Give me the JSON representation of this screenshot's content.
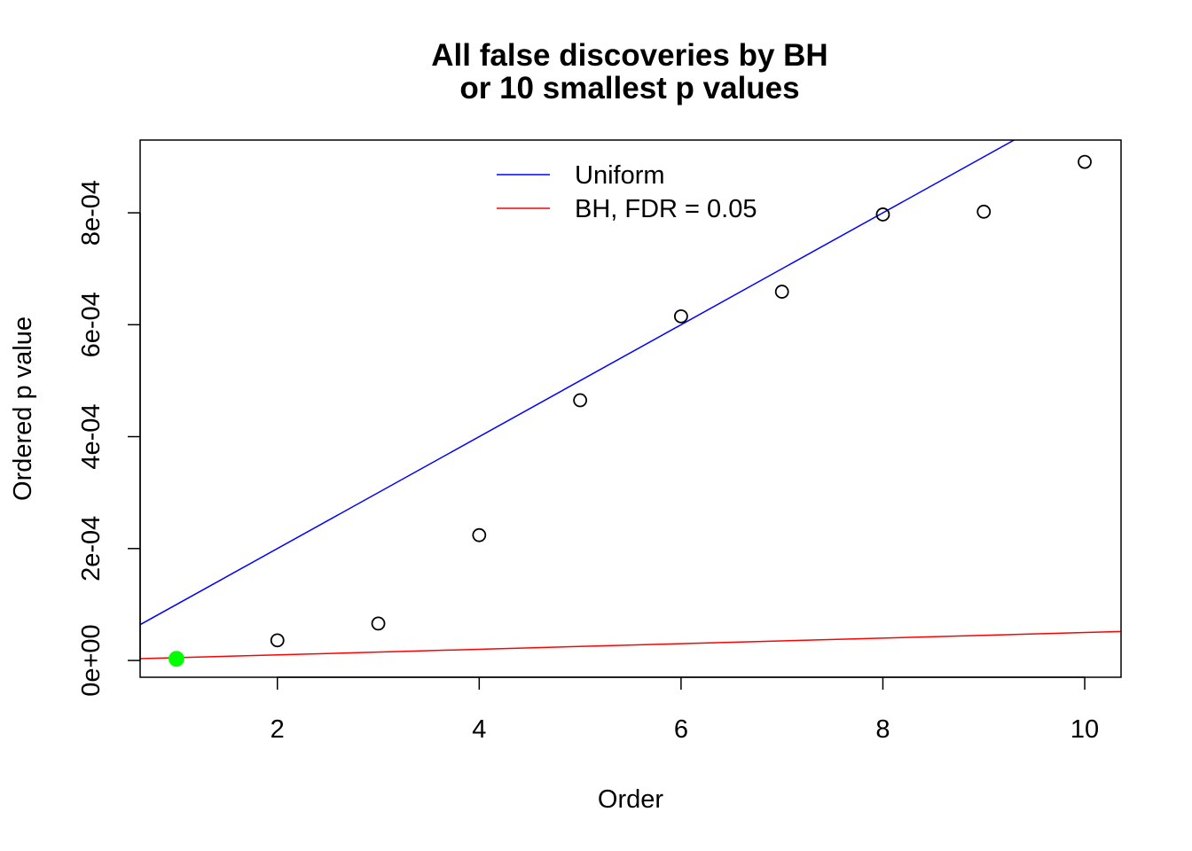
{
  "chart_data": {
    "type": "scatter",
    "title": [
      "All false discoveries by BH",
      "or 10 smallest p values"
    ],
    "xlabel": "Order",
    "ylabel": "Ordered p value",
    "xlim": [
      0.64,
      10.36
    ],
    "ylim": [
      -3e-05,
      0.00093
    ],
    "x_ticks": [
      2,
      4,
      6,
      8,
      10
    ],
    "x_tick_labels": [
      "2",
      "4",
      "6",
      "8",
      "10"
    ],
    "y_ticks": [
      0,
      0.0002,
      0.0004,
      0.0006,
      0.0008
    ],
    "y_tick_labels": [
      "0e+00",
      "2e-04",
      "4e-04",
      "6e-04",
      "8e-04"
    ],
    "grid": false,
    "points": [
      {
        "x": 1,
        "y": 3e-06,
        "highlighted": true
      },
      {
        "x": 2,
        "y": 3.6e-05
      },
      {
        "x": 3,
        "y": 6.6e-05
      },
      {
        "x": 4,
        "y": 0.000224
      },
      {
        "x": 5,
        "y": 0.000465
      },
      {
        "x": 6,
        "y": 0.000615
      },
      {
        "x": 7,
        "y": 0.000659
      },
      {
        "x": 8,
        "y": 0.000797
      },
      {
        "x": 9,
        "y": 0.000802
      },
      {
        "x": 10,
        "y": 0.000891
      }
    ],
    "lines": [
      {
        "name": "Uniform",
        "color": "#0000ff",
        "intercept": 0,
        "slope": 0.0001
      },
      {
        "name": "BH, FDR = 0.05",
        "color": "#ff0000",
        "intercept": 0,
        "slope": 5e-06
      }
    ],
    "legend": {
      "position": "top",
      "entries": [
        {
          "label": "Uniform",
          "color": "#0000ff"
        },
        {
          "label": "BH, FDR = 0.05",
          "color": "#ff0000"
        }
      ]
    },
    "highlight_color": "#00ff00",
    "point_color": "#000000"
  }
}
